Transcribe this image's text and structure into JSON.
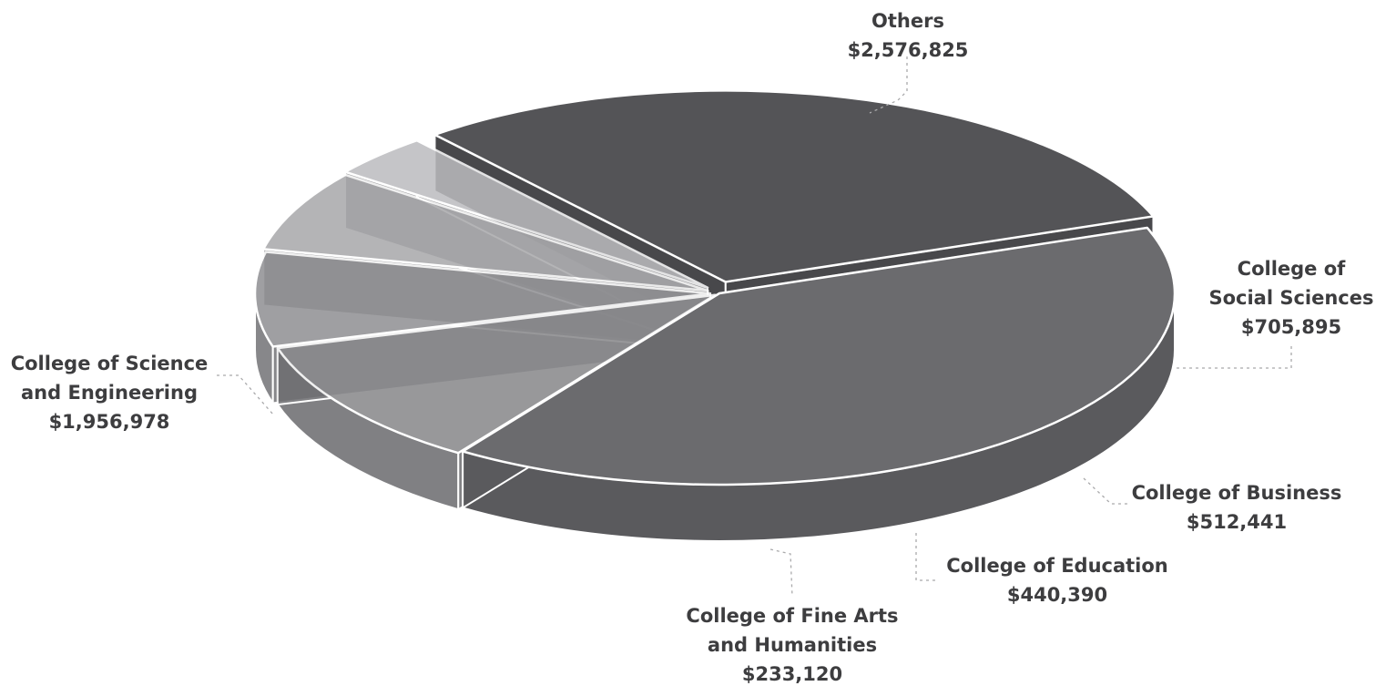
{
  "chart_data": {
    "type": "pie",
    "style": "3d-exploded",
    "title": "",
    "slices": [
      {
        "label": [
          "Others",
          "$2,576,825"
        ],
        "value": 2576825,
        "top_color": "#6b6b6e",
        "side_color": "#5a5a5d",
        "opacity": 1
      },
      {
        "label": [
          "College of",
          "Social Sciences",
          "$705,895"
        ],
        "value": 705895,
        "top_color": "#8a8a8d",
        "side_color": "#6f6f72",
        "opacity": 0.88
      },
      {
        "label": [
          "College of Business",
          "$512,441"
        ],
        "value": 512441,
        "top_color": "#8f8f92",
        "side_color": "#737376",
        "opacity": 0.85
      },
      {
        "label": [
          "College of Education",
          "$440,390"
        ],
        "value": 440390,
        "top_color": "#a4a4a7",
        "side_color": "#858588",
        "opacity": 0.82
      },
      {
        "label": [
          "College of Fine Arts",
          "and Humanities",
          "$233,120"
        ],
        "value": 233120,
        "top_color": "#bcbcbf",
        "side_color": "#97979a",
        "opacity": 0.85
      },
      {
        "label": [
          "College of Science",
          "and Engineering",
          "$1,956,978"
        ],
        "value": 1956978,
        "top_color": "#545457",
        "side_color": "#48484b",
        "opacity": 1
      }
    ]
  }
}
